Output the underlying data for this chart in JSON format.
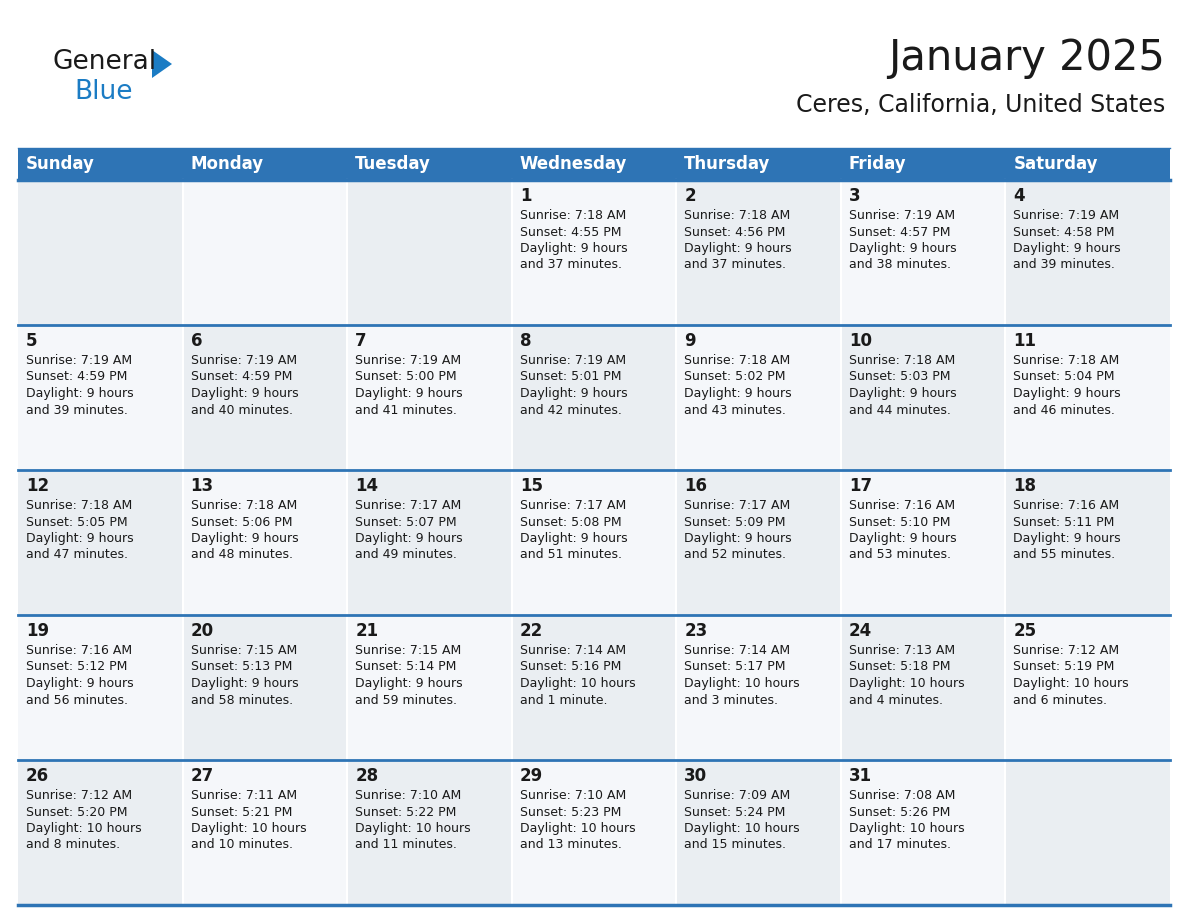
{
  "title": "January 2025",
  "subtitle": "Ceres, California, United States",
  "header_color": "#2E74B5",
  "header_text_color": "#FFFFFF",
  "cell_bg_color": "#F0F4F8",
  "cell_bg_alt": "#FFFFFF",
  "cell_text_color": "#1a1a1a",
  "day_number_color": "#1a1a1a",
  "separator_color": "#2E74B5",
  "days_of_week": [
    "Sunday",
    "Monday",
    "Tuesday",
    "Wednesday",
    "Thursday",
    "Friday",
    "Saturday"
  ],
  "logo_general_color": "#1a1a1a",
  "logo_blue_color": "#1B7CC4",
  "logo_triangle_color": "#1B7CC4",
  "title_color": "#1a1a1a",
  "subtitle_color": "#1a1a1a",
  "calendar_data": [
    [
      {
        "day": null,
        "sunrise": null,
        "sunset": null,
        "daylight": null
      },
      {
        "day": null,
        "sunrise": null,
        "sunset": null,
        "daylight": null
      },
      {
        "day": null,
        "sunrise": null,
        "sunset": null,
        "daylight": null
      },
      {
        "day": "1",
        "sunrise": "7:18 AM",
        "sunset": "4:55 PM",
        "daylight": "9 hours\nand 37 minutes."
      },
      {
        "day": "2",
        "sunrise": "7:18 AM",
        "sunset": "4:56 PM",
        "daylight": "9 hours\nand 37 minutes."
      },
      {
        "day": "3",
        "sunrise": "7:19 AM",
        "sunset": "4:57 PM",
        "daylight": "9 hours\nand 38 minutes."
      },
      {
        "day": "4",
        "sunrise": "7:19 AM",
        "sunset": "4:58 PM",
        "daylight": "9 hours\nand 39 minutes."
      }
    ],
    [
      {
        "day": "5",
        "sunrise": "7:19 AM",
        "sunset": "4:59 PM",
        "daylight": "9 hours\nand 39 minutes."
      },
      {
        "day": "6",
        "sunrise": "7:19 AM",
        "sunset": "4:59 PM",
        "daylight": "9 hours\nand 40 minutes."
      },
      {
        "day": "7",
        "sunrise": "7:19 AM",
        "sunset": "5:00 PM",
        "daylight": "9 hours\nand 41 minutes."
      },
      {
        "day": "8",
        "sunrise": "7:19 AM",
        "sunset": "5:01 PM",
        "daylight": "9 hours\nand 42 minutes."
      },
      {
        "day": "9",
        "sunrise": "7:18 AM",
        "sunset": "5:02 PM",
        "daylight": "9 hours\nand 43 minutes."
      },
      {
        "day": "10",
        "sunrise": "7:18 AM",
        "sunset": "5:03 PM",
        "daylight": "9 hours\nand 44 minutes."
      },
      {
        "day": "11",
        "sunrise": "7:18 AM",
        "sunset": "5:04 PM",
        "daylight": "9 hours\nand 46 minutes."
      }
    ],
    [
      {
        "day": "12",
        "sunrise": "7:18 AM",
        "sunset": "5:05 PM",
        "daylight": "9 hours\nand 47 minutes."
      },
      {
        "day": "13",
        "sunrise": "7:18 AM",
        "sunset": "5:06 PM",
        "daylight": "9 hours\nand 48 minutes."
      },
      {
        "day": "14",
        "sunrise": "7:17 AM",
        "sunset": "5:07 PM",
        "daylight": "9 hours\nand 49 minutes."
      },
      {
        "day": "15",
        "sunrise": "7:17 AM",
        "sunset": "5:08 PM",
        "daylight": "9 hours\nand 51 minutes."
      },
      {
        "day": "16",
        "sunrise": "7:17 AM",
        "sunset": "5:09 PM",
        "daylight": "9 hours\nand 52 minutes."
      },
      {
        "day": "17",
        "sunrise": "7:16 AM",
        "sunset": "5:10 PM",
        "daylight": "9 hours\nand 53 minutes."
      },
      {
        "day": "18",
        "sunrise": "7:16 AM",
        "sunset": "5:11 PM",
        "daylight": "9 hours\nand 55 minutes."
      }
    ],
    [
      {
        "day": "19",
        "sunrise": "7:16 AM",
        "sunset": "5:12 PM",
        "daylight": "9 hours\nand 56 minutes."
      },
      {
        "day": "20",
        "sunrise": "7:15 AM",
        "sunset": "5:13 PM",
        "daylight": "9 hours\nand 58 minutes."
      },
      {
        "day": "21",
        "sunrise": "7:15 AM",
        "sunset": "5:14 PM",
        "daylight": "9 hours\nand 59 minutes."
      },
      {
        "day": "22",
        "sunrise": "7:14 AM",
        "sunset": "5:16 PM",
        "daylight": "10 hours\nand 1 minute."
      },
      {
        "day": "23",
        "sunrise": "7:14 AM",
        "sunset": "5:17 PM",
        "daylight": "10 hours\nand 3 minutes."
      },
      {
        "day": "24",
        "sunrise": "7:13 AM",
        "sunset": "5:18 PM",
        "daylight": "10 hours\nand 4 minutes."
      },
      {
        "day": "25",
        "sunrise": "7:12 AM",
        "sunset": "5:19 PM",
        "daylight": "10 hours\nand 6 minutes."
      }
    ],
    [
      {
        "day": "26",
        "sunrise": "7:12 AM",
        "sunset": "5:20 PM",
        "daylight": "10 hours\nand 8 minutes."
      },
      {
        "day": "27",
        "sunrise": "7:11 AM",
        "sunset": "5:21 PM",
        "daylight": "10 hours\nand 10 minutes."
      },
      {
        "day": "28",
        "sunrise": "7:10 AM",
        "sunset": "5:22 PM",
        "daylight": "10 hours\nand 11 minutes."
      },
      {
        "day": "29",
        "sunrise": "7:10 AM",
        "sunset": "5:23 PM",
        "daylight": "10 hours\nand 13 minutes."
      },
      {
        "day": "30",
        "sunrise": "7:09 AM",
        "sunset": "5:24 PM",
        "daylight": "10 hours\nand 15 minutes."
      },
      {
        "day": "31",
        "sunrise": "7:08 AM",
        "sunset": "5:26 PM",
        "daylight": "10 hours\nand 17 minutes."
      },
      {
        "day": null,
        "sunrise": null,
        "sunset": null,
        "daylight": null
      }
    ]
  ]
}
